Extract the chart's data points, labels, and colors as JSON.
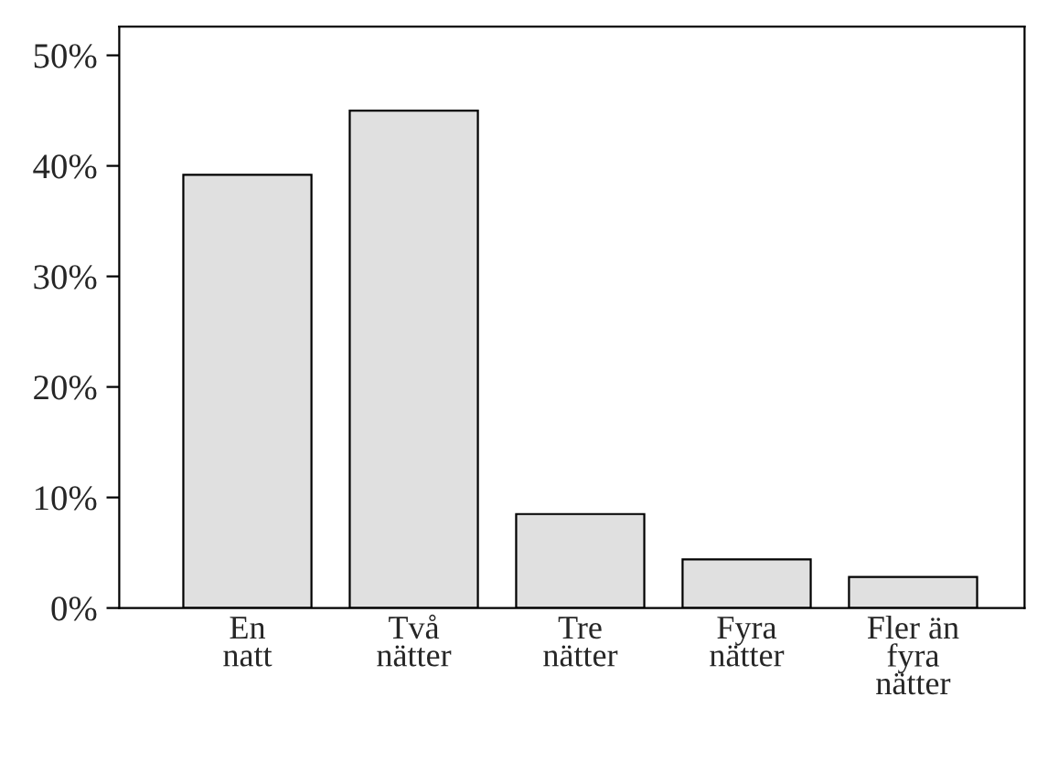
{
  "chart_data": {
    "type": "bar",
    "categories": [
      "En\nnatt",
      "Två\nnätter",
      "Tre\nnätter",
      "Fyra\nnätter",
      "Fler än\nfyra\nnätter"
    ],
    "values": [
      39.2,
      45.0,
      8.5,
      4.4,
      2.8
    ],
    "color": "#e0e0e0",
    "ylim": [
      0,
      52.6
    ],
    "yticks": [
      {
        "value": 0,
        "label": "0%"
      },
      {
        "value": 10,
        "label": "10%"
      },
      {
        "value": 20,
        "label": "20%"
      },
      {
        "value": 30,
        "label": "30%"
      },
      {
        "value": 40,
        "label": "40%"
      },
      {
        "value": 50,
        "label": "50%"
      }
    ],
    "grid": false
  }
}
